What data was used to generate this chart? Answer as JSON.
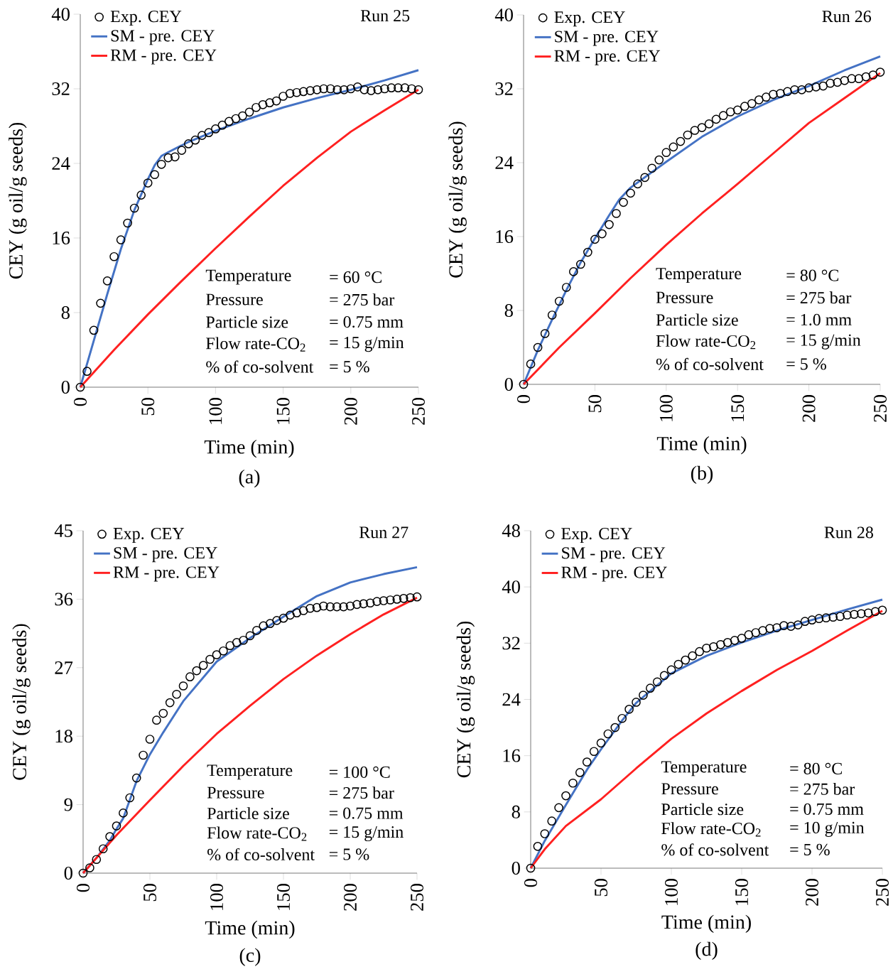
{
  "chart_data": [
    {
      "type": "line",
      "title": "Run 25",
      "xlabel": "Time (min)",
      "ylabel": "CEY (g oil/g seeds)",
      "xlim": [
        0,
        250
      ],
      "ylim": [
        0,
        40
      ],
      "xticks": [
        0,
        50,
        100,
        150,
        200,
        250
      ],
      "yticks": [
        0,
        8,
        16,
        24,
        32,
        40
      ],
      "legend": "top left",
      "annotations": [
        "(a)",
        "Temperature",
        "= 60 °C",
        "Pressure",
        "= 275 bar",
        "Particle size",
        "= 0.75 mm",
        "Flow rate-CO$_{2}$",
        "= 15 g/min",
        "% of co-solvent",
        "= 5 %"
      ],
      "series": [
        {
          "name": "Exp. CEY",
          "type": "scatter",
          "marker": "circle",
          "color": "#000000",
          "x": [
            0,
            5,
            10,
            15,
            20,
            25,
            30,
            35,
            40,
            45,
            50,
            55,
            60,
            65,
            70,
            75,
            80,
            85,
            90,
            95,
            100,
            105,
            110,
            115,
            120,
            125,
            130,
            135,
            140,
            145,
            150,
            155,
            160,
            165,
            170,
            175,
            180,
            185,
            190,
            195,
            200,
            205,
            210,
            215,
            220,
            225,
            230,
            235,
            240,
            245,
            250
          ],
          "values": [
            0,
            1.7,
            6.1,
            9.0,
            11.4,
            14.0,
            15.8,
            17.6,
            19.2,
            20.6,
            21.9,
            22.8,
            23.9,
            24.6,
            24.7,
            25.4,
            26.1,
            26.5,
            27.0,
            27.3,
            27.7,
            28.1,
            28.5,
            28.8,
            29.1,
            29.5,
            30.0,
            30.3,
            30.5,
            30.7,
            31.2,
            31.5,
            31.6,
            31.7,
            31.8,
            31.9,
            32.0,
            32.0,
            31.9,
            31.9,
            32.0,
            32.2,
            31.9,
            31.8,
            31.9,
            32.0,
            32.1,
            32.1,
            32.1,
            32.0,
            31.9
          ]
        },
        {
          "name": "SM - pre. CEY",
          "color": "#4472c4",
          "x": [
            0,
            10,
            20,
            30,
            40,
            50,
            55,
            60,
            65,
            80,
            100,
            125,
            150,
            175,
            200,
            225,
            250
          ],
          "values": [
            0,
            5.0,
            10.0,
            14.8,
            19.0,
            22.3,
            23.8,
            24.8,
            25.2,
            26.3,
            27.5,
            28.8,
            30.0,
            31.0,
            31.9,
            32.9,
            34.0
          ]
        },
        {
          "name": "RM - pre. CEY",
          "color": "#ff2020",
          "x": [
            0,
            25,
            50,
            75,
            100,
            125,
            150,
            175,
            200,
            225,
            250
          ],
          "values": [
            0,
            4.0,
            7.8,
            11.4,
            14.9,
            18.3,
            21.6,
            24.6,
            27.4,
            29.7,
            31.9
          ]
        }
      ]
    },
    {
      "type": "line",
      "title": "Run 26",
      "xlabel": "Time (min)",
      "ylabel": "CEY (g oil/g seeds)",
      "xlim": [
        0,
        250
      ],
      "ylim": [
        0,
        40
      ],
      "xticks": [
        0,
        50,
        100,
        150,
        200,
        250
      ],
      "yticks": [
        0,
        8,
        16,
        24,
        32,
        40
      ],
      "legend": "top left",
      "annotations": [
        "(b)",
        "Temperature",
        "= 80 °C",
        "Pressure",
        "= 275 bar",
        "Particle size",
        "= 1.0 mm",
        "Flow rate-CO$_{2}$",
        "= 15 g/min",
        "% of co-solvent",
        "= 5 %"
      ],
      "series": [
        {
          "name": "Exp. CEY",
          "type": "scatter",
          "marker": "circle",
          "color": "#000000",
          "x": [
            0,
            5,
            10,
            15,
            20,
            25,
            30,
            35,
            40,
            45,
            50,
            55,
            60,
            65,
            70,
            75,
            80,
            85,
            90,
            95,
            100,
            105,
            110,
            115,
            120,
            125,
            130,
            135,
            140,
            145,
            150,
            155,
            160,
            165,
            170,
            175,
            180,
            185,
            190,
            195,
            200,
            205,
            210,
            215,
            220,
            225,
            230,
            235,
            240,
            245,
            250
          ],
          "values": [
            0,
            2.2,
            4.0,
            5.5,
            7.5,
            9.0,
            10.5,
            12.2,
            13.0,
            14.3,
            15.7,
            16.3,
            17.3,
            18.5,
            19.7,
            20.7,
            21.7,
            22.4,
            23.4,
            24.3,
            25.1,
            25.7,
            26.3,
            27.0,
            27.5,
            27.8,
            28.2,
            28.7,
            29.1,
            29.5,
            29.7,
            30.1,
            30.4,
            30.8,
            31.1,
            31.4,
            31.5,
            31.7,
            31.9,
            31.9,
            32.1,
            32.2,
            32.3,
            32.6,
            32.7,
            32.9,
            33.1,
            33.1,
            33.3,
            33.5,
            33.8
          ]
        },
        {
          "name": "SM - pre. CEY",
          "color": "#4472c4",
          "x": [
            0,
            10,
            20,
            30,
            40,
            50,
            60,
            67,
            75,
            100,
            125,
            150,
            175,
            200,
            225,
            250
          ],
          "values": [
            0,
            3.7,
            7.0,
            10.2,
            13.2,
            15.8,
            18.3,
            20.0,
            21.3,
            24.1,
            26.8,
            29.0,
            30.8,
            32.3,
            34.0,
            35.5
          ]
        },
        {
          "name": "RM - pre. CEY",
          "color": "#ff2020",
          "x": [
            0,
            25,
            50,
            75,
            100,
            125,
            150,
            175,
            200,
            225,
            250
          ],
          "values": [
            0,
            4.0,
            7.7,
            11.5,
            15.1,
            18.5,
            21.7,
            25.0,
            28.3,
            31.0,
            33.7
          ]
        }
      ]
    },
    {
      "type": "line",
      "title": "Run 27",
      "xlabel": "Time (min)",
      "ylabel": "CEY (g oil/g seeds)",
      "xlim": [
        0,
        250
      ],
      "ylim": [
        0,
        45
      ],
      "xticks": [
        0,
        50,
        100,
        150,
        200,
        250
      ],
      "yticks": [
        0,
        9,
        18,
        27,
        36,
        45
      ],
      "legend": "top left",
      "annotations": [
        "(c)",
        "Temperature",
        "= 100 °C",
        "Pressure",
        "= 275 bar",
        "Particle size",
        "= 0.75 mm",
        "Flow rate-CO$_{2}$",
        "= 15 g/min",
        "% of co-solvent",
        "= 5 %"
      ],
      "series": [
        {
          "name": "Exp. CEY",
          "type": "scatter",
          "marker": "circle",
          "color": "#000000",
          "x": [
            0,
            5,
            10,
            15,
            20,
            25,
            30,
            35,
            40,
            45,
            50,
            55,
            60,
            65,
            70,
            75,
            80,
            85,
            90,
            95,
            100,
            105,
            110,
            115,
            120,
            125,
            130,
            135,
            140,
            145,
            150,
            155,
            160,
            165,
            170,
            175,
            180,
            185,
            190,
            195,
            200,
            205,
            210,
            215,
            220,
            225,
            230,
            235,
            240,
            245,
            250
          ],
          "values": [
            0,
            0.7,
            1.8,
            3.2,
            4.8,
            6.2,
            7.9,
            9.9,
            12.5,
            15.5,
            17.6,
            20.1,
            21.0,
            22.4,
            23.5,
            24.6,
            25.8,
            26.6,
            27.3,
            28.1,
            28.7,
            29.2,
            29.9,
            30.3,
            30.6,
            31.2,
            31.9,
            32.5,
            32.8,
            33.2,
            33.5,
            33.9,
            34.2,
            34.5,
            34.8,
            34.9,
            35.1,
            35.0,
            35.0,
            35.0,
            35.1,
            35.3,
            35.4,
            35.5,
            35.7,
            35.8,
            35.9,
            36.0,
            36.1,
            36.2,
            36.3
          ]
        },
        {
          "name": "SM - pre. CEY",
          "color": "#4472c4",
          "x": [
            0,
            10,
            20,
            25,
            30,
            40,
            50,
            60,
            75,
            100,
            125,
            150,
            175,
            200,
            225,
            250
          ],
          "values": [
            0,
            2.0,
            4.3,
            5.8,
            7.2,
            12.1,
            15.6,
            18.5,
            22.6,
            27.8,
            30.9,
            33.7,
            36.4,
            38.2,
            39.3,
            40.2
          ]
        },
        {
          "name": "RM - pre. CEY",
          "color": "#ff2020",
          "x": [
            0,
            25,
            50,
            75,
            100,
            125,
            150,
            175,
            200,
            225,
            250
          ],
          "values": [
            0,
            5.0,
            9.6,
            14.1,
            18.3,
            22.0,
            25.5,
            28.6,
            31.4,
            34.0,
            36.2
          ]
        }
      ]
    },
    {
      "type": "line",
      "title": "Run 28",
      "xlabel": "Time (min)",
      "ylabel": "CEY (g oil/g seeds)",
      "xlim": [
        0,
        250
      ],
      "ylim": [
        0,
        48
      ],
      "xticks": [
        0,
        50,
        100,
        150,
        200,
        250
      ],
      "yticks": [
        0,
        8,
        16,
        24,
        32,
        40,
        48
      ],
      "legend": "top left",
      "annotations": [
        "(d)",
        "Temperature",
        "= 80 °C",
        "Pressure",
        "= 275 bar",
        "Particle size",
        "= 0.75 mm",
        "Flow rate-CO$_{2}$",
        "= 10 g/min",
        "% of co-solvent",
        "= 5 %"
      ],
      "series": [
        {
          "name": "Exp. CEY",
          "type": "scatter",
          "marker": "circle",
          "color": "#000000",
          "x": [
            0,
            5,
            10,
            15,
            20,
            25,
            30,
            35,
            40,
            45,
            50,
            55,
            60,
            65,
            70,
            75,
            80,
            85,
            90,
            95,
            100,
            105,
            110,
            115,
            120,
            125,
            130,
            135,
            140,
            145,
            150,
            155,
            160,
            165,
            170,
            175,
            180,
            185,
            190,
            195,
            200,
            205,
            210,
            215,
            220,
            225,
            230,
            235,
            240,
            245,
            250
          ],
          "values": [
            0,
            3.1,
            4.9,
            6.7,
            8.6,
            10.3,
            12.1,
            13.6,
            15.1,
            16.6,
            17.8,
            19.1,
            20.0,
            21.3,
            22.6,
            23.6,
            24.6,
            25.6,
            26.5,
            27.4,
            28.2,
            29.0,
            29.6,
            30.2,
            30.8,
            31.3,
            31.5,
            31.8,
            32.1,
            32.4,
            32.7,
            33.2,
            33.5,
            33.8,
            34.1,
            34.2,
            34.5,
            34.4,
            34.6,
            35.1,
            35.3,
            35.5,
            35.6,
            35.7,
            35.8,
            36.0,
            36.1,
            36.2,
            36.3,
            36.5,
            36.7
          ]
        },
        {
          "name": "SM - pre. CEY",
          "color": "#4472c4",
          "x": [
            0,
            10,
            25,
            40,
            50,
            65,
            75,
            100,
            125,
            150,
            175,
            200,
            225,
            250
          ],
          "values": [
            0,
            3.9,
            9.0,
            14.0,
            16.9,
            21.0,
            23.5,
            27.7,
            30.2,
            32.1,
            33.8,
            35.3,
            36.8,
            38.2
          ]
        },
        {
          "name": "RM - pre. CEY",
          "color": "#ff2020",
          "x": [
            0,
            10,
            25,
            50,
            75,
            100,
            125,
            150,
            175,
            200,
            225,
            250
          ],
          "values": [
            0,
            2.7,
            6.0,
            9.8,
            14.2,
            18.4,
            22.0,
            25.2,
            28.2,
            30.9,
            33.8,
            36.6
          ]
        }
      ]
    }
  ]
}
